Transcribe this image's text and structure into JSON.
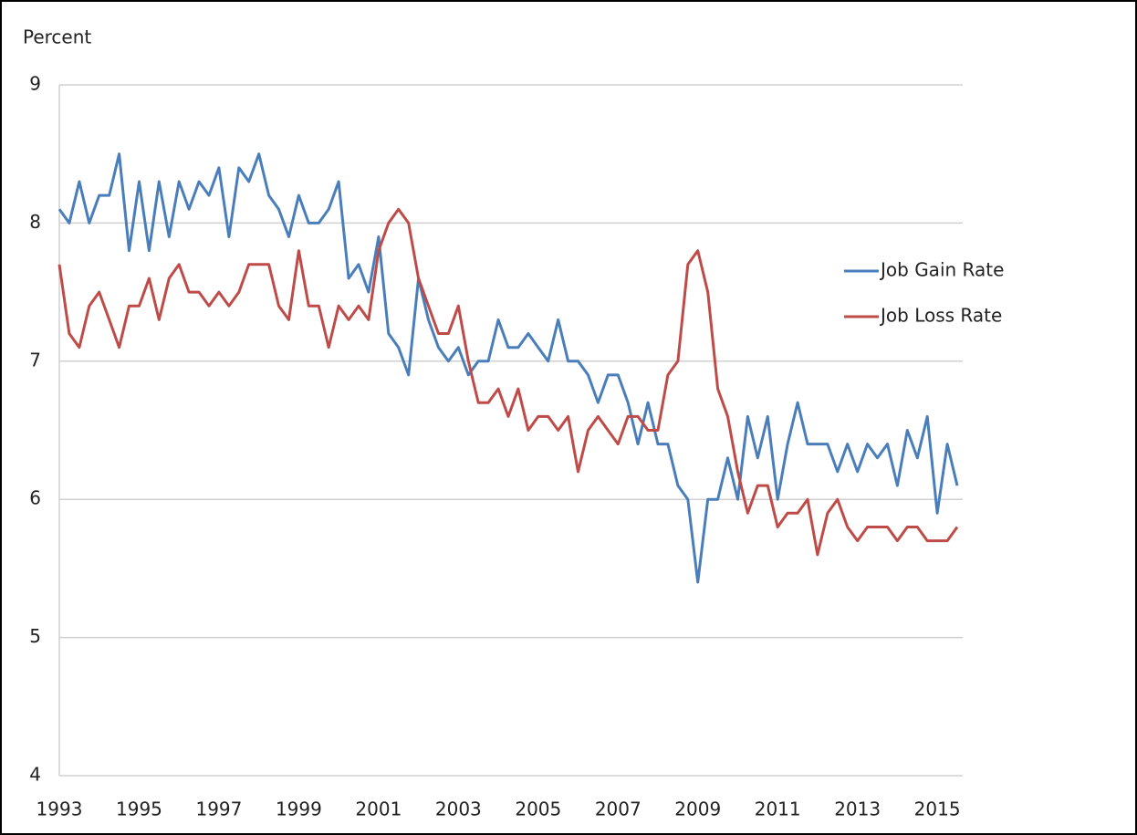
{
  "chart_data": {
    "type": "line",
    "y_label": "Percent",
    "categories": [
      "1993",
      null,
      null,
      null,
      null,
      null,
      null,
      null,
      "1995",
      null,
      null,
      null,
      null,
      null,
      null,
      null,
      "1997",
      null,
      null,
      null,
      null,
      null,
      null,
      null,
      "1999",
      null,
      null,
      null,
      null,
      null,
      null,
      null,
      "2001",
      null,
      null,
      null,
      null,
      null,
      null,
      null,
      "2003",
      null,
      null,
      null,
      null,
      null,
      null,
      null,
      "2005",
      null,
      null,
      null,
      null,
      null,
      null,
      null,
      "2007",
      null,
      null,
      null,
      null,
      null,
      null,
      null,
      "2009",
      null,
      null,
      null,
      null,
      null,
      null,
      null,
      "2011",
      null,
      null,
      null,
      null,
      null,
      null,
      null,
      "2013",
      null,
      null,
      null,
      null,
      null,
      null,
      null,
      "2015",
      null,
      null
    ],
    "series": [
      {
        "name": "Job Gain Rate",
        "color": "#4a7ebb",
        "values": [
          8.1,
          8.0,
          8.3,
          8.0,
          8.2,
          8.2,
          8.5,
          7.8,
          8.3,
          7.8,
          8.3,
          7.9,
          8.3,
          8.1,
          8.3,
          8.2,
          8.4,
          7.9,
          8.4,
          8.3,
          8.5,
          8.2,
          8.1,
          7.9,
          8.2,
          8.0,
          8.0,
          8.1,
          8.3,
          7.6,
          7.7,
          7.5,
          7.9,
          7.2,
          7.1,
          6.9,
          7.6,
          7.3,
          7.1,
          7.0,
          7.1,
          6.9,
          7.0,
          7.0,
          7.3,
          7.1,
          7.1,
          7.2,
          7.1,
          7.0,
          7.3,
          7.0,
          7.0,
          6.9,
          6.7,
          6.9,
          6.9,
          6.7,
          6.4,
          6.7,
          6.4,
          6.4,
          6.1,
          6.0,
          5.4,
          6.0,
          6.0,
          6.3,
          6.0,
          6.6,
          6.3,
          6.6,
          6.0,
          6.4,
          6.7,
          6.4,
          6.4,
          6.4,
          6.2,
          6.4,
          6.2,
          6.4,
          6.3,
          6.4,
          6.1,
          6.5,
          6.3,
          6.6,
          5.9,
          6.4,
          6.1
        ]
      },
      {
        "name": "Job Loss Rate",
        "color": "#be4b48",
        "values": [
          7.7,
          7.2,
          7.1,
          7.4,
          7.5,
          7.3,
          7.1,
          7.4,
          7.4,
          7.6,
          7.3,
          7.6,
          7.7,
          7.5,
          7.5,
          7.4,
          7.5,
          7.4,
          7.5,
          7.7,
          7.7,
          7.7,
          7.4,
          7.3,
          7.8,
          7.4,
          7.4,
          7.1,
          7.4,
          7.3,
          7.4,
          7.3,
          7.8,
          8.0,
          8.1,
          8.0,
          7.6,
          7.4,
          7.2,
          7.2,
          7.4,
          7.0,
          6.7,
          6.7,
          6.8,
          6.6,
          6.8,
          6.5,
          6.6,
          6.6,
          6.5,
          6.6,
          6.2,
          6.5,
          6.6,
          6.5,
          6.4,
          6.6,
          6.6,
          6.5,
          6.5,
          6.9,
          7.0,
          7.7,
          7.8,
          7.5,
          6.8,
          6.6,
          6.2,
          5.9,
          6.1,
          6.1,
          5.8,
          5.9,
          5.9,
          6.0,
          5.6,
          5.9,
          6.0,
          5.8,
          5.7,
          5.8,
          5.8,
          5.8,
          5.7,
          5.8,
          5.8,
          5.7,
          5.7,
          5.7,
          5.8
        ]
      }
    ],
    "ylim": [
      4,
      9
    ],
    "yticks": [
      4,
      5,
      6,
      7,
      8,
      9
    ],
    "grid": true,
    "legend": "right"
  }
}
